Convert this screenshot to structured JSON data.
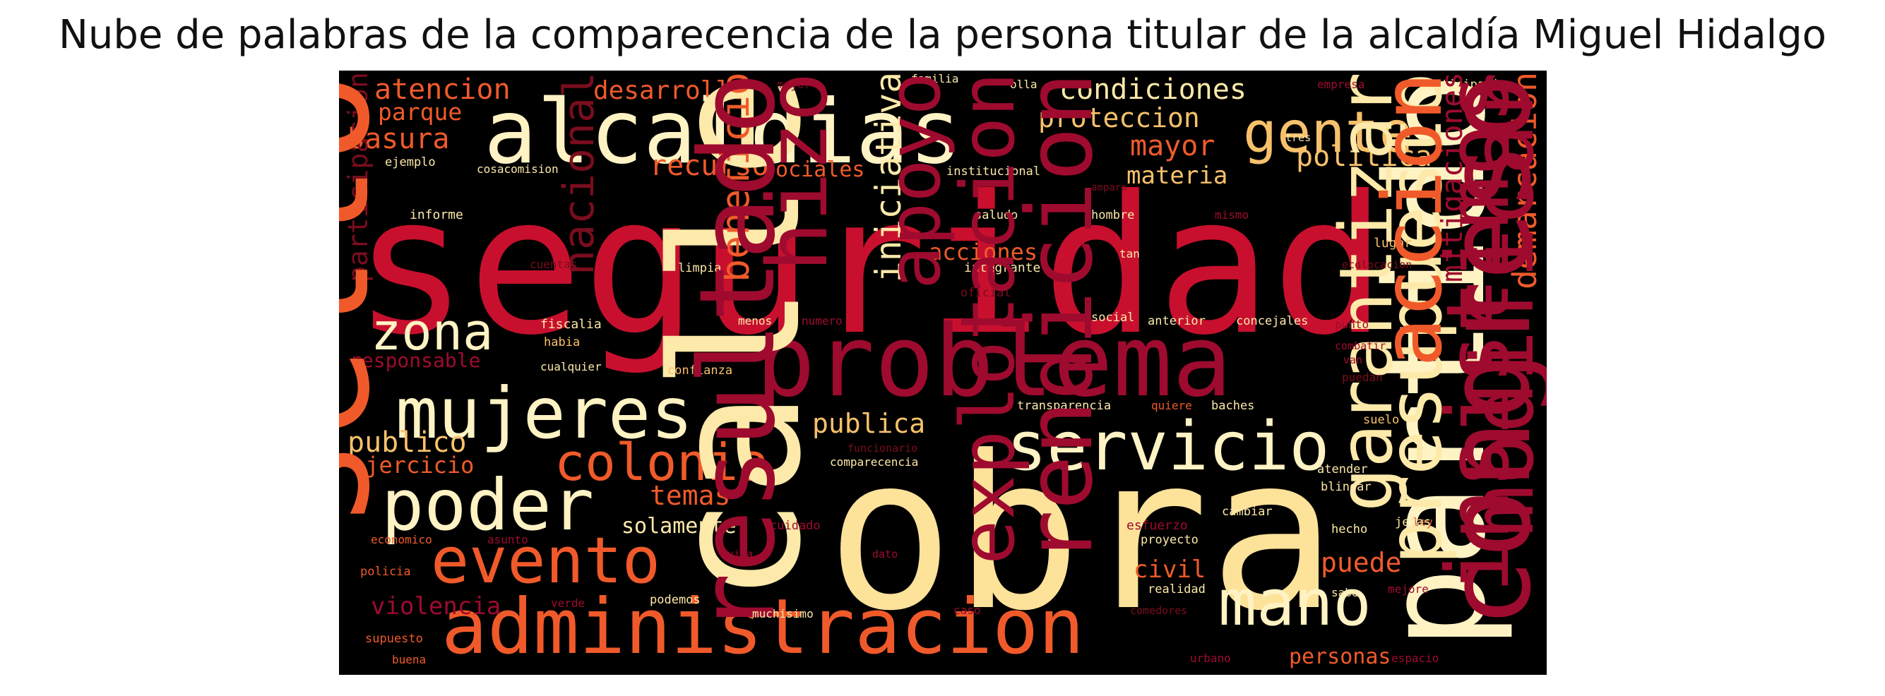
{
  "title": "Nube de palabras de la comparecencia de la persona titular de la alcaldía Miguel Hidalgo",
  "palette": {
    "background": "#000000",
    "red": "#c8102e",
    "crimson": "#9e0b2f",
    "orange_red": "#f05a2a",
    "orange": "#f7a44e",
    "light_yellow": "#fde9a9",
    "cream": "#fff3c4",
    "dark_red": "#7a0d1e"
  },
  "words": [
    {
      "text": "seguridad",
      "c": "#c8102e"
    },
    {
      "text": "obra",
      "c": "#fde29a"
    },
    {
      "text": "problema",
      "c": "#9e0b2f"
    },
    {
      "text": "alcaldias",
      "c": "#fff3c4"
    },
    {
      "text": "administracion",
      "c": "#f05a2a"
    },
    {
      "text": "partido",
      "c": "#fff3c4"
    },
    {
      "text": "mujeres",
      "c": "#fff3c4"
    },
    {
      "text": "servicio",
      "c": "#fff3c4"
    },
    {
      "text": "poder",
      "c": "#fff3c4"
    },
    {
      "text": "evento",
      "c": "#f05a2a"
    },
    {
      "text": "colonia",
      "c": "#f05a2a"
    },
    {
      "text": "gente",
      "c": "#f7c16b"
    },
    {
      "text": "mano",
      "c": "#fff3c4"
    },
    {
      "text": "zona",
      "c": "#fff3c4"
    },
    {
      "text": "condiciones",
      "c": "#fde9a9"
    },
    {
      "text": "proteccion",
      "c": "#f7c16b"
    },
    {
      "text": "atencion",
      "c": "#f05a2a"
    },
    {
      "text": "desarrollo",
      "c": "#f05a2a"
    },
    {
      "text": "basura",
      "c": "#f05a2a"
    },
    {
      "text": "parque",
      "c": "#f05a2a"
    },
    {
      "text": "recurso",
      "c": "#f05a2a"
    },
    {
      "text": "sociales",
      "c": "#f05a2a"
    },
    {
      "text": "mayor",
      "c": "#f05a2a"
    },
    {
      "text": "politica",
      "c": "#f7c16b"
    },
    {
      "text": "materia",
      "c": "#f7c16b"
    },
    {
      "text": "garantizar",
      "c": "#fde9a9"
    },
    {
      "text": "presupuesto",
      "c": "#fde9a9"
    },
    {
      "text": "publica",
      "c": "#f7c16b"
    },
    {
      "text": "publico",
      "c": "#f7c16b"
    },
    {
      "text": "ejercicio",
      "c": "#f05a2a"
    },
    {
      "text": "responsable",
      "c": "#9e0b2f"
    },
    {
      "text": "temas",
      "c": "#f05a2a"
    },
    {
      "text": "solamente",
      "c": "#fde9a9"
    },
    {
      "text": "calle",
      "c": "#fde9a9"
    },
    {
      "text": "puede",
      "c": "#f05a2a"
    },
    {
      "text": "civil",
      "c": "#f05a2a"
    },
    {
      "text": "violencia",
      "c": "#9e0b2f"
    },
    {
      "text": "personas",
      "c": "#f05a2a"
    },
    {
      "text": "acciones",
      "c": "#f05a2a"
    },
    {
      "text": "familia",
      "c": "#fde9a9"
    },
    {
      "text": "olla",
      "c": "#fde9a9"
    },
    {
      "text": "mejor",
      "c": "#7a0d1e"
    },
    {
      "text": "empresa",
      "c": "#9e0b2f"
    },
    {
      "text": "participativo",
      "c": "#fde9a9"
    },
    {
      "text": "ejemplo",
      "c": "#fde9a9"
    },
    {
      "text": "cosacomision",
      "c": "#fde9a9"
    },
    {
      "text": "institucional",
      "c": "#fde9a9"
    },
    {
      "text": "tres",
      "c": "#fde9a9"
    },
    {
      "text": "amparo",
      "c": "#7a0d1e"
    },
    {
      "text": "demarcacion",
      "c": "#f05a2a"
    },
    {
      "text": "participacion",
      "c": "#7a0d1e"
    },
    {
      "text": "informe",
      "c": "#fde9a9"
    },
    {
      "text": "saludo",
      "c": "#fde9a9"
    },
    {
      "text": "hombre",
      "c": "#fde9a9"
    },
    {
      "text": "mismo",
      "c": "#9e0b2f"
    },
    {
      "text": "mitigaciones",
      "c": "#9e0b2f"
    },
    {
      "text": "cuentas",
      "c": "#7a0d1e"
    },
    {
      "text": "nacional",
      "c": "#7a0d1e"
    },
    {
      "text": "limpia",
      "c": "#fde9a9"
    },
    {
      "text": "beneficio",
      "c": "#f05a2a"
    },
    {
      "text": "hizo",
      "c": "#9e0b2f"
    },
    {
      "text": "iniciativa",
      "c": "#fde9a9"
    },
    {
      "text": "apoyo",
      "c": "#9e0b2f"
    },
    {
      "text": "integrante",
      "c": "#fde9a9"
    },
    {
      "text": "oficial",
      "c": "#7a0d1e"
    },
    {
      "text": "tan",
      "c": "#fde9a9"
    },
    {
      "text": "ecolocacion",
      "c": "#7a0d1e"
    },
    {
      "text": "lugar",
      "c": "#f7c16b"
    },
    {
      "text": "fiscalia",
      "c": "#fde9a9"
    },
    {
      "text": "habia",
      "c": "#f7c16b"
    },
    {
      "text": "menos",
      "c": "#fde9a9"
    },
    {
      "text": "numero",
      "c": "#9e0b2f"
    },
    {
      "text": "medio",
      "c": "#9e0b2f"
    },
    {
      "text": "social",
      "c": "#fde9a9"
    },
    {
      "text": "anterior",
      "c": "#fde9a9"
    },
    {
      "text": "concejales",
      "c": "#fde9a9"
    },
    {
      "text": "punto",
      "c": "#9e0b2f"
    },
    {
      "text": "combatir",
      "c": "#9e0b2f"
    },
    {
      "text": "accion",
      "c": "#f05a2a"
    },
    {
      "text": "cualquier",
      "c": "#fde9a9"
    },
    {
      "text": "confianza",
      "c": "#f7c16b"
    },
    {
      "text": "van",
      "c": "#9e0b2f"
    },
    {
      "text": "puedan",
      "c": "#7a0d1e"
    },
    {
      "text": "transparencia",
      "c": "#fde9a9"
    },
    {
      "text": "quiere",
      "c": "#f05a2a"
    },
    {
      "text": "baches",
      "c": "#fde9a9"
    },
    {
      "text": "funcionario",
      "c": "#7a0d1e"
    },
    {
      "text": "suelo",
      "c": "#f7c16b"
    },
    {
      "text": "comparecencia",
      "c": "#fde9a9"
    },
    {
      "text": "atender",
      "c": "#fde9a9"
    },
    {
      "text": "blindar",
      "c": "#fde9a9"
    },
    {
      "text": "sello",
      "c": "#f05a2a"
    },
    {
      "text": "cuidado",
      "c": "#9e0b2f"
    },
    {
      "text": "explotacion",
      "c": "#9e0b2f"
    },
    {
      "text": "rendicion",
      "c": "#9e0b2f"
    },
    {
      "text": "esfuerzo",
      "c": "#9e0b2f"
    },
    {
      "text": "cambiar",
      "c": "#fde9a9"
    },
    {
      "text": "ley",
      "c": "#f05a2a"
    },
    {
      "text": "modificar",
      "c": "#9e0b2f"
    },
    {
      "text": "economico",
      "c": "#f05a2a"
    },
    {
      "text": "asunto",
      "c": "#9e0b2f"
    },
    {
      "text": "hecho",
      "c": "#fde9a9"
    },
    {
      "text": "jefas",
      "c": "#fde9a9"
    },
    {
      "text": "proyecto",
      "c": "#fde9a9"
    },
    {
      "text": "vida",
      "c": "#9e0b2f"
    },
    {
      "text": "dato",
      "c": "#9e0b2f"
    },
    {
      "text": "insistimos",
      "c": "#9e0b2f"
    },
    {
      "text": "policia",
      "c": "#f05a2a"
    },
    {
      "text": "realidad",
      "c": "#fde9a9"
    },
    {
      "text": "mejore",
      "c": "#9e0b2f"
    },
    {
      "text": "sabe",
      "c": "#fde9a9"
    },
    {
      "text": "congreso",
      "c": "#9e0b2f"
    },
    {
      "text": "resultado",
      "c": "#9e0b2f"
    },
    {
      "text": "verde",
      "c": "#9e0b2f"
    },
    {
      "text": "podemos",
      "c": "#fde9a9"
    },
    {
      "text": "muchisimo",
      "c": "#fde9a9"
    },
    {
      "text": "caso",
      "c": "#9e0b2f"
    },
    {
      "text": "comedores",
      "c": "#7a0d1e"
    },
    {
      "text": "supuesto",
      "c": "#f05a2a"
    },
    {
      "text": "buena",
      "c": "#f05a2a"
    },
    {
      "text": "urbano",
      "c": "#9e0b2f"
    },
    {
      "text": "espacio",
      "c": "#9e0b2f"
    }
  ]
}
